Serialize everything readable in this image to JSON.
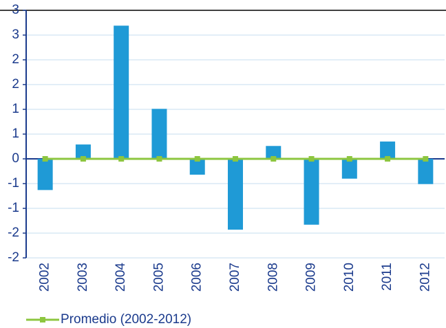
{
  "chart_data": {
    "type": "bar",
    "categories": [
      "2002",
      "2003",
      "2004",
      "2005",
      "2006",
      "2007",
      "2008",
      "2009",
      "2010",
      "2011",
      "2012"
    ],
    "series": [
      {
        "type": "bar",
        "color": "#1f9ad6",
        "values": [
          -0.63,
          0.29,
          2.69,
          1.01,
          -0.32,
          -1.43,
          0.26,
          -1.33,
          -0.4,
          0.35,
          -0.51
        ]
      },
      {
        "type": "line",
        "name": "Promedio (2002-2012)",
        "color": "#8dc63f",
        "values": [
          0,
          0,
          0,
          0,
          0,
          0,
          0,
          0,
          0,
          0,
          0
        ]
      }
    ],
    "ylim": [
      -2,
      3
    ],
    "yticks": [
      -2,
      {
        "value": -1.5,
        "label": "-2"
      },
      -1,
      {
        "value": -0.5,
        "label": "-1"
      },
      0,
      {
        "value": 0.5,
        "label": "1"
      },
      1,
      {
        "value": 1.5,
        "label": "2"
      },
      2,
      {
        "value": 2.5,
        "label": "3"
      },
      3
    ],
    "grid": true
  }
}
